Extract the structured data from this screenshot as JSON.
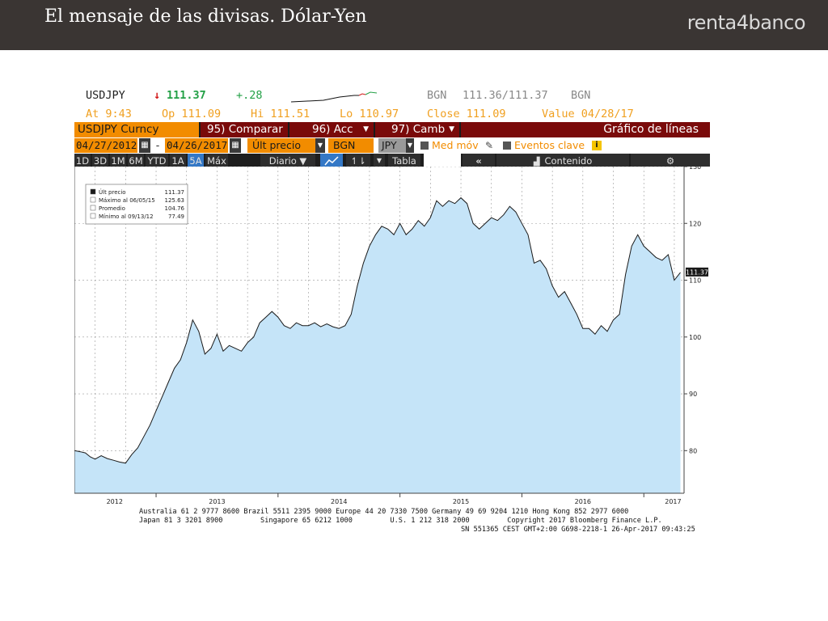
{
  "slide": {
    "title": "El mensaje de las divisas. Dólar-Yen",
    "brand": "renta4banco"
  },
  "quote": {
    "ticker": "USDJPY",
    "arrow": "↓",
    "last": "111.37",
    "change": "+.28",
    "source1": "BGN",
    "bid_ask": "111.36/111.37",
    "source2": "BGN",
    "time": "At 9:43",
    "open": "Op 111.09",
    "high": "Hi 111.51",
    "low": "Lo 110.97",
    "close": "Close 111.09",
    "value": "Value 04/28/17"
  },
  "toolbar": {
    "security": "USDJPY Curncy",
    "compare": "95) Comparar",
    "actions": "96) Acc",
    "change": "97) Camb",
    "graph_title": "Gráfico de líneas",
    "date_from": "04/27/2012",
    "dash": "-",
    "date_to": "04/26/2017",
    "field": "Últ precio",
    "source": "BGN",
    "currency": "JPY",
    "moving_avg": "Med móv",
    "key_events": "Eventos clave",
    "info_badge": "i",
    "periods": [
      "1D",
      "3D",
      "1M",
      "6M",
      "YTD",
      "1A",
      "5A",
      "Máx"
    ],
    "active_period": "5A",
    "frequency": "Diario ▼",
    "table": "Tabla",
    "content": "Contenido",
    "colors": {
      "orange": "#f28c00",
      "maroon": "#7a0a0a",
      "dark": "#1a1a1a"
    }
  },
  "legend": {
    "rows": [
      {
        "label": "Últ precio",
        "value": "111.37"
      },
      {
        "label": "Máximo al 06/05/15",
        "value": "125.63"
      },
      {
        "label": "Promedio",
        "value": "104.76"
      },
      {
        "label": "Mínimo al 09/13/12",
        "value": "77.49"
      }
    ]
  },
  "footer": {
    "line1": "Australia 61 2 9777 8600 Brazil 5511 2395 9000 Europe 44 20 7330 7500 Germany 49 69 9204 1210 Hong Kong 852 2977 6000",
    "line2": "Japan 81 3 3201 8900         Singapore 65 6212 1000         U.S. 1 212 318 2000         Copyright 2017 Bloomberg Finance L.P.",
    "line3": "SN 551365 CEST GMT+2:00 G698-2218-1 26-Apr-2017 09:43:25"
  },
  "chart_data": {
    "type": "area",
    "x_unit": "year (decimal)",
    "xlim": [
      2012.33,
      2017.33
    ],
    "ylim": [
      72.5,
      130
    ],
    "y_ticks": [
      80,
      90,
      100,
      110,
      120,
      130
    ],
    "x_tick_labels": [
      "2012",
      "2013",
      "2014",
      "2015",
      "2016",
      "2017"
    ],
    "x_tick_positions": [
      2012.66,
      2013.5,
      2014.5,
      2015.5,
      2016.5,
      2017.24
    ],
    "last_price_label": "111.37",
    "grid": true,
    "legend_position": "top-left",
    "colors": {
      "fill": "#c5e4f8",
      "line": "#1a1a1a"
    },
    "series": [
      {
        "name": "Últ precio",
        "x": [
          2012.33,
          2012.38,
          2012.42,
          2012.46,
          2012.5,
          2012.55,
          2012.6,
          2012.65,
          2012.7,
          2012.75,
          2012.8,
          2012.85,
          2012.9,
          2012.95,
          2013.0,
          2013.05,
          2013.1,
          2013.15,
          2013.2,
          2013.25,
          2013.3,
          2013.35,
          2013.4,
          2013.45,
          2013.5,
          2013.55,
          2013.6,
          2013.65,
          2013.7,
          2013.75,
          2013.8,
          2013.85,
          2013.9,
          2013.95,
          2014.0,
          2014.05,
          2014.1,
          2014.15,
          2014.2,
          2014.25,
          2014.3,
          2014.35,
          2014.4,
          2014.45,
          2014.5,
          2014.55,
          2014.6,
          2014.65,
          2014.7,
          2014.75,
          2014.8,
          2014.85,
          2014.9,
          2014.95,
          2015.0,
          2015.05,
          2015.1,
          2015.15,
          2015.2,
          2015.25,
          2015.3,
          2015.35,
          2015.4,
          2015.45,
          2015.5,
          2015.55,
          2015.6,
          2015.65,
          2015.7,
          2015.75,
          2015.8,
          2015.85,
          2015.9,
          2015.95,
          2016.0,
          2016.05,
          2016.1,
          2016.15,
          2016.2,
          2016.25,
          2016.3,
          2016.35,
          2016.4,
          2016.45,
          2016.5,
          2016.55,
          2016.6,
          2016.65,
          2016.7,
          2016.75,
          2016.8,
          2016.85,
          2016.9,
          2016.95,
          2017.0,
          2017.05,
          2017.1,
          2017.15,
          2017.2,
          2017.25,
          2017.3
        ],
        "y": [
          80.0,
          79.8,
          79.6,
          78.9,
          78.5,
          79.1,
          78.6,
          78.3,
          78.0,
          77.8,
          79.3,
          80.5,
          82.5,
          84.5,
          87.0,
          89.5,
          92.0,
          94.5,
          96.0,
          99.0,
          103.0,
          101.0,
          97.0,
          98.0,
          100.5,
          97.5,
          98.5,
          98.0,
          97.5,
          99.0,
          100.0,
          102.5,
          103.5,
          104.5,
          103.5,
          102.0,
          101.5,
          102.5,
          102.0,
          102.0,
          102.5,
          101.8,
          102.3,
          101.8,
          101.5,
          102.0,
          104.0,
          109.0,
          113.0,
          116.0,
          118.0,
          119.5,
          119.0,
          118.0,
          120.0,
          118.0,
          119.0,
          120.5,
          119.5,
          121.0,
          124.0,
          123.0,
          124.0,
          123.5,
          124.5,
          123.5,
          120.0,
          119.0,
          120.0,
          121.0,
          120.5,
          121.5,
          123.0,
          122.0,
          120.0,
          118.0,
          113.0,
          113.5,
          112.0,
          109.0,
          107.0,
          108.0,
          106.0,
          104.0,
          101.5,
          101.5,
          100.5,
          102.0,
          101.0,
          103.0,
          104.0,
          111.0,
          116.0,
          118.0,
          116.0,
          115.0,
          114.0,
          113.5,
          114.5,
          110.0,
          111.37
        ]
      }
    ]
  }
}
